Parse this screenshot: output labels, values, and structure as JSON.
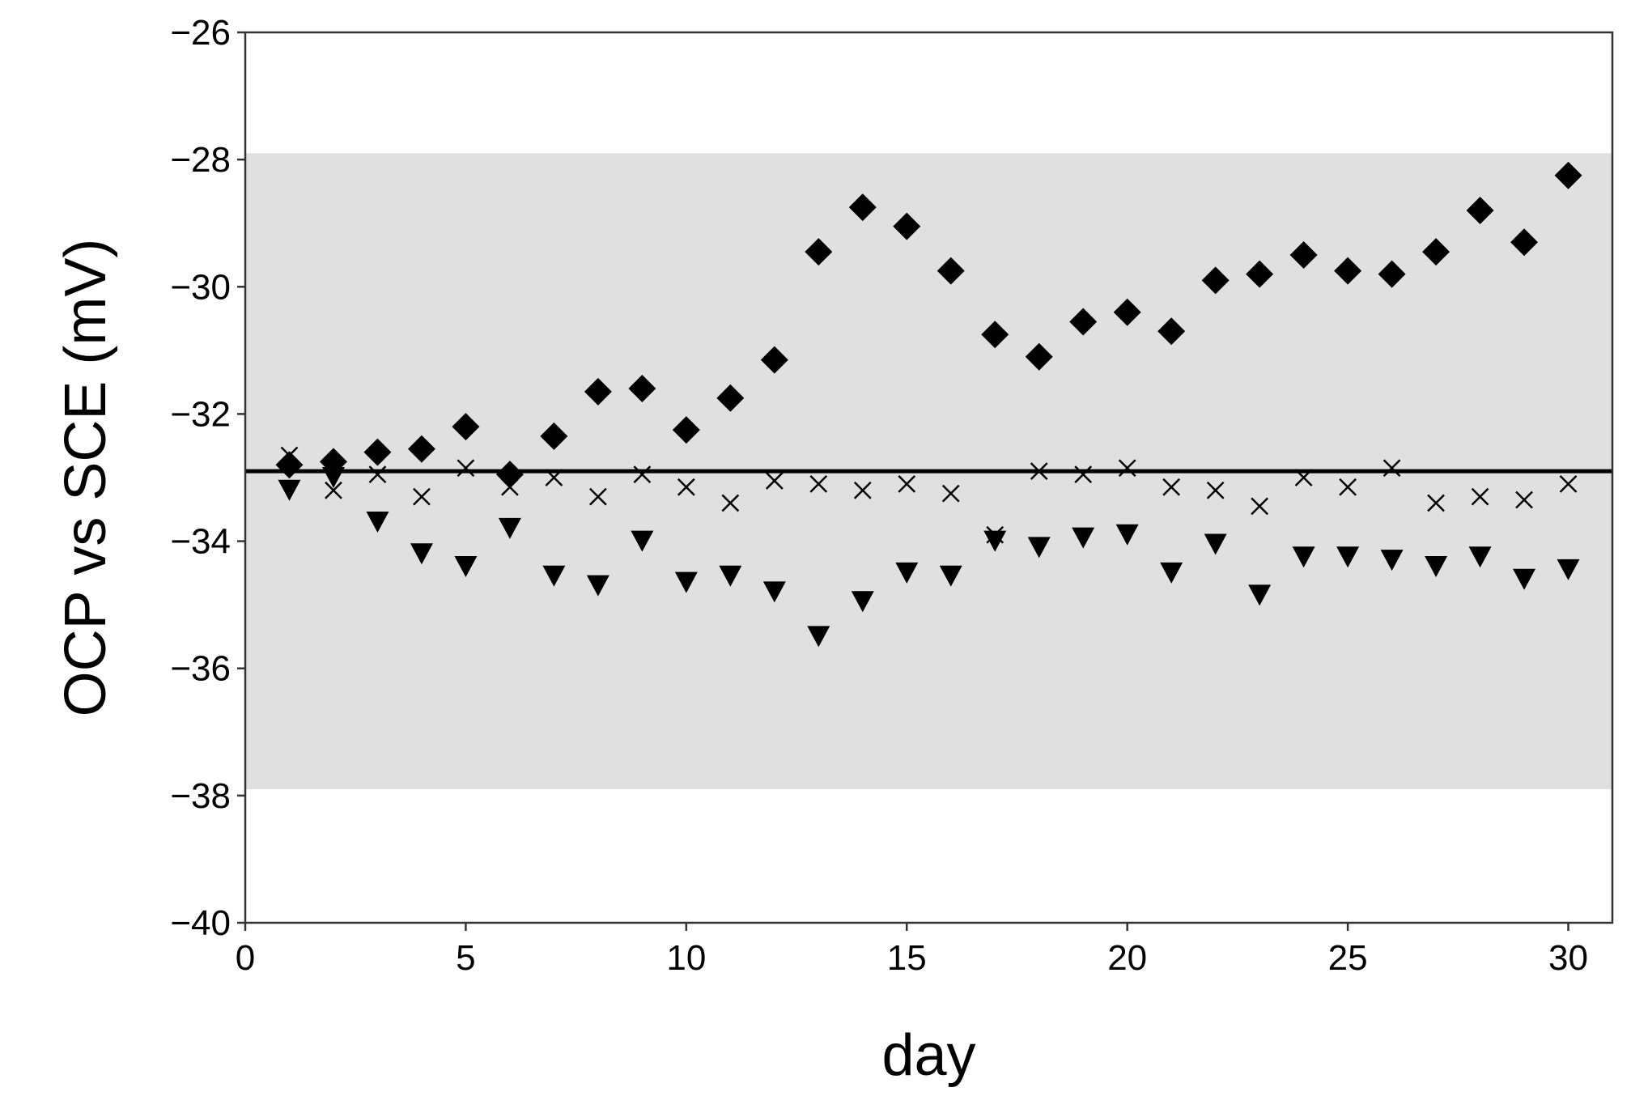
{
  "chart_data": {
    "type": "scatter",
    "title": "",
    "xlabel": "day",
    "ylabel": "OCP vs SCE (mV)",
    "xlim": [
      0,
      31
    ],
    "ylim": [
      -40,
      -26
    ],
    "xticks": [
      0,
      5,
      10,
      15,
      20,
      25,
      30
    ],
    "yticks": [
      -40,
      -38,
      -36,
      -34,
      -32,
      -30,
      -28,
      -26
    ],
    "xtick_labels": [
      "0",
      "5",
      "10",
      "15",
      "20",
      "25",
      "30"
    ],
    "ytick_labels": [
      "−40",
      "−38",
      "−36",
      "−34",
      "−32",
      "−30",
      "−28",
      "−26"
    ],
    "grid": false,
    "band": {
      "ymin": -37.9,
      "ymax": -27.9,
      "color": "#e0e0e0"
    },
    "reference_line": {
      "y": -32.9,
      "color": "#000000"
    },
    "series": [
      {
        "marker": "diamond",
        "color": "#000000",
        "x": [
          1,
          2,
          3,
          4,
          5,
          6,
          7,
          8,
          9,
          10,
          11,
          12,
          13,
          14,
          15,
          16,
          17,
          18,
          19,
          20,
          21,
          22,
          23,
          24,
          25,
          26,
          27,
          28,
          29,
          30
        ],
        "y": [
          -32.8,
          -32.75,
          -32.6,
          -32.55,
          -32.2,
          -32.95,
          -32.35,
          -31.65,
          -31.6,
          -32.25,
          -31.75,
          -31.15,
          -29.45,
          -28.75,
          -29.05,
          -29.75,
          -30.75,
          -31.1,
          -30.55,
          -30.4,
          -30.7,
          -29.9,
          -29.8,
          -29.5,
          -29.75,
          -29.8,
          -29.45,
          -28.8,
          -29.3,
          -28.25
        ]
      },
      {
        "marker": "x",
        "color": "#000000",
        "x": [
          1,
          2,
          3,
          4,
          5,
          6,
          7,
          8,
          9,
          10,
          11,
          12,
          13,
          14,
          15,
          16,
          17,
          18,
          19,
          20,
          21,
          22,
          23,
          24,
          25,
          26,
          27,
          28,
          29,
          30
        ],
        "y": [
          -32.65,
          -33.2,
          -32.95,
          -33.3,
          -32.85,
          -33.15,
          -33.0,
          -33.3,
          -32.95,
          -33.15,
          -33.4,
          -33.05,
          -33.1,
          -33.2,
          -33.1,
          -33.25,
          -33.9,
          -32.9,
          -32.95,
          -32.85,
          -33.15,
          -33.2,
          -33.45,
          -33.0,
          -33.15,
          -32.85,
          -33.4,
          -33.3,
          -33.35,
          -33.1
        ]
      },
      {
        "marker": "triangle-down",
        "color": "#000000",
        "x": [
          1,
          2,
          3,
          4,
          5,
          6,
          7,
          8,
          9,
          10,
          11,
          12,
          13,
          14,
          15,
          16,
          17,
          18,
          19,
          20,
          21,
          22,
          23,
          24,
          25,
          26,
          27,
          28,
          29,
          30
        ],
        "y": [
          -33.2,
          -33.0,
          -33.7,
          -34.2,
          -34.4,
          -33.8,
          -34.55,
          -34.7,
          -34.0,
          -34.65,
          -34.55,
          -34.8,
          -35.5,
          -34.95,
          -34.5,
          -34.55,
          -34.0,
          -34.1,
          -33.95,
          -33.9,
          -34.5,
          -34.05,
          -34.85,
          -34.25,
          -34.25,
          -34.3,
          -34.4,
          -34.25,
          -34.6,
          -34.45
        ]
      }
    ]
  }
}
